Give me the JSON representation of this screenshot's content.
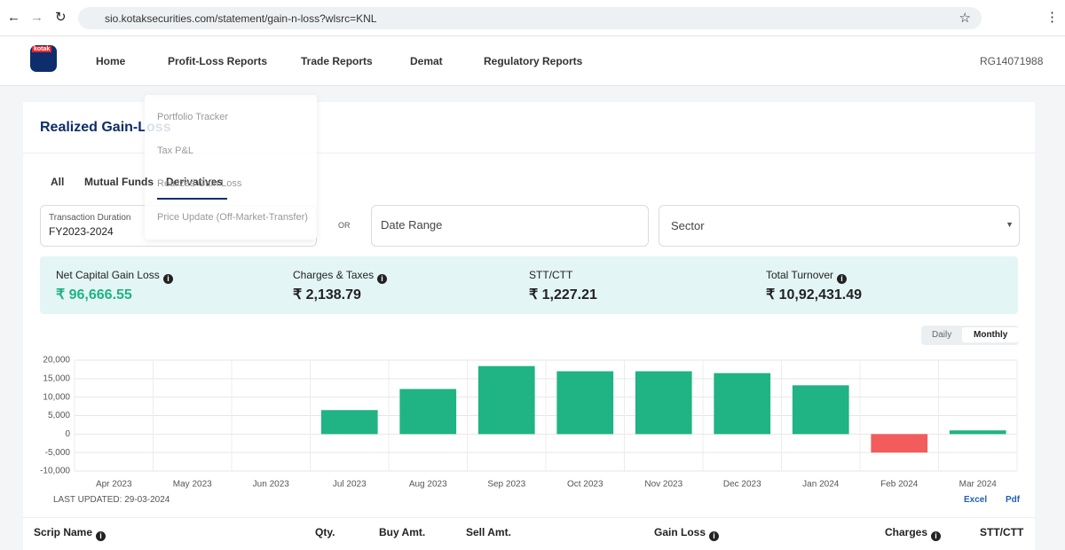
{
  "browser": {
    "url": "sio.kotaksecurities.com/statement/gain-n-loss?wlsrc=KNL"
  },
  "nav": {
    "logo": "kotak",
    "items": [
      "Home",
      "Profit-Loss Reports",
      "Trade Reports",
      "Demat",
      "Regulatory Reports"
    ],
    "user": "RG14071988"
  },
  "dropdown": [
    "Portfolio Tracker",
    "Tax P&L",
    "Realized Gain Loss",
    "Price Update (Off-Market-Transfer)"
  ],
  "page": {
    "title": "Realized Gain-Loss",
    "tabs": [
      "All",
      "Mutual Funds",
      "Derivatives"
    ],
    "filters": {
      "duration_label": "Transaction Duration",
      "duration_value": "FY2023-2024",
      "or": "OR",
      "date_range": "Date Range",
      "sector": "Sector"
    },
    "summary": [
      {
        "label": "Net Capital Gain Loss",
        "value": "₹ 96,666.55"
      },
      {
        "label": "Charges & Taxes",
        "value": "₹ 2,138.79"
      },
      {
        "label": "STT/CTT",
        "value": "₹ 1,227.21"
      },
      {
        "label": "Total Turnover",
        "value": "₹ 10,92,431.49"
      }
    ],
    "toggle": [
      "Daily",
      "Monthly"
    ],
    "last_updated": "LAST UPDATED: 29-03-2024",
    "excel": "Excel",
    "pdf": "Pdf",
    "table_columns": [
      "Scrip Name",
      "Qty.",
      "Buy Amt.",
      "Sell Amt.",
      "Gain Loss",
      "Charges",
      "STT/CTT"
    ]
  },
  "chart_data": {
    "type": "bar",
    "categories": [
      "Apr 2023",
      "May 2023",
      "Jun 2023",
      "Jul 2023",
      "Aug 2023",
      "Sep 2023",
      "Oct 2023",
      "Nov 2023",
      "Dec 2023",
      "Jan 2024",
      "Feb 2024",
      "Mar 2024"
    ],
    "values": [
      0,
      0,
      0,
      6500,
      12200,
      18400,
      17000,
      17000,
      16500,
      13200,
      -5000,
      1000
    ],
    "color": "#20b383",
    "negative_color": "#f25c5c",
    "ylim": [
      -10000,
      20000
    ],
    "yticks": [
      {
        "value": -10000,
        "label": "-10,000"
      },
      {
        "value": -5000,
        "label": "-5,000"
      },
      0,
      {
        "value": 5000,
        "label": "5,000"
      },
      {
        "value": 10000,
        "label": "10,000"
      },
      {
        "value": 15000,
        "label": "15,000"
      },
      {
        "value": 20000,
        "label": "20,000"
      }
    ],
    "grid": true
  }
}
